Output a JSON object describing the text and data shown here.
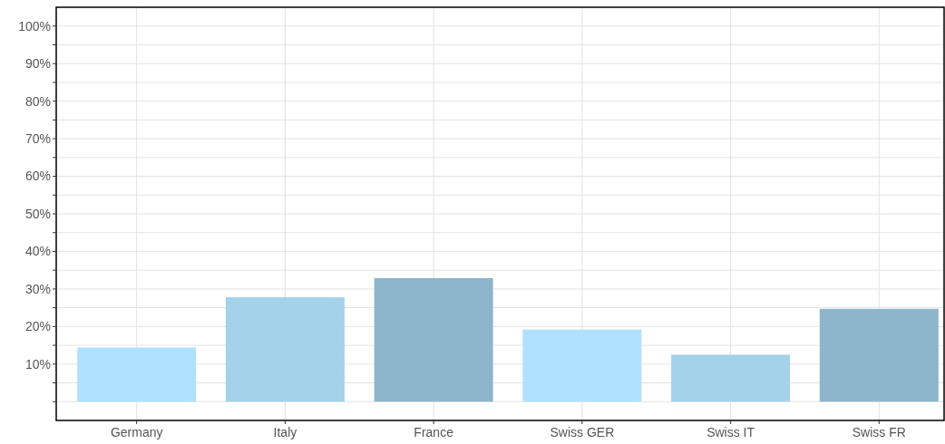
{
  "chart_data": {
    "type": "bar",
    "categories": [
      "Germany",
      "Italy",
      "France",
      "Swiss GER",
      "Swiss IT",
      "Swiss FR"
    ],
    "values": [
      14.4,
      27.8,
      32.9,
      19.2,
      12.5,
      24.7
    ],
    "colors": [
      "#b0e0ff",
      "#a3d2ea",
      "#8db5cb",
      "#b0e0ff",
      "#a3d2ea",
      "#8db5cb"
    ],
    "ylim": [
      -5,
      105
    ],
    "yticks": [
      {
        "value": 0,
        "label": null
      },
      {
        "value": 5,
        "label": null
      },
      {
        "value": 10,
        "label": "10%"
      },
      {
        "value": 15,
        "label": null
      },
      {
        "value": 20,
        "label": "20%"
      },
      {
        "value": 25,
        "label": null
      },
      {
        "value": 30,
        "label": "30%"
      },
      {
        "value": 35,
        "label": null
      },
      {
        "value": 40,
        "label": "40%"
      },
      {
        "value": 45,
        "label": null
      },
      {
        "value": 50,
        "label": "50%"
      },
      {
        "value": 55,
        "label": null
      },
      {
        "value": 60,
        "label": "60%"
      },
      {
        "value": 65,
        "label": null
      },
      {
        "value": 70,
        "label": "70%"
      },
      {
        "value": 75,
        "label": null
      },
      {
        "value": 80,
        "label": "80%"
      },
      {
        "value": 85,
        "label": null
      },
      {
        "value": 90,
        "label": "90%"
      },
      {
        "value": 95,
        "label": null
      },
      {
        "value": 100,
        "label": "100%"
      }
    ],
    "grid": true
  }
}
